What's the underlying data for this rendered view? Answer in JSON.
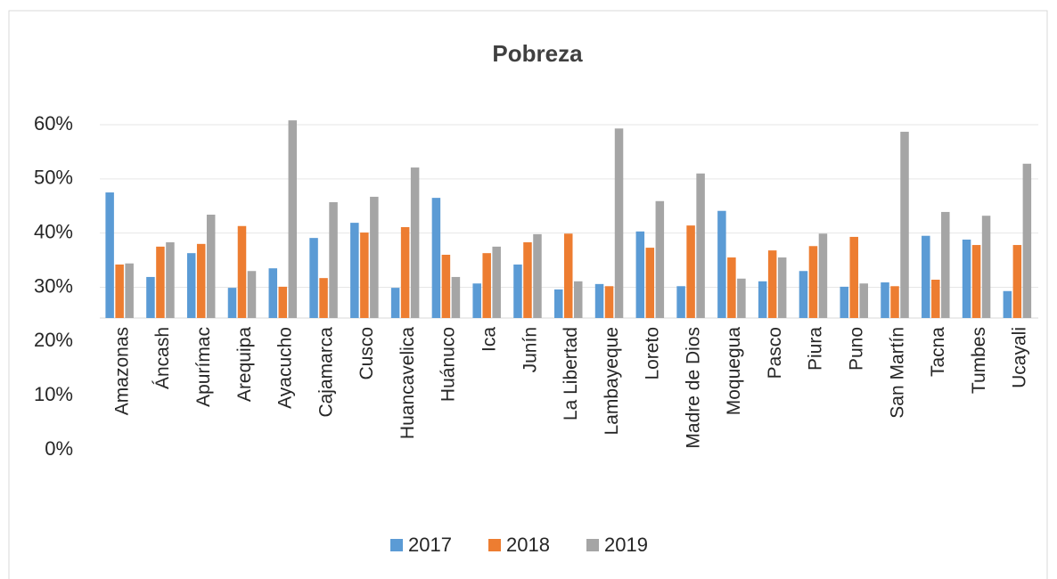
{
  "chart_data": {
    "type": "bar",
    "title": "Pobreza",
    "categories": [
      "Amazonas",
      "Áncash",
      "Apurímac",
      "Arequipa",
      "Ayacucho",
      "Cajamarca",
      "Cusco",
      "Huancavelica",
      "Huánuco",
      "Ica",
      "Junín",
      "La Libertad",
      "Lambayeque",
      "Loreto",
      "Madre de Dios",
      "Moquegua",
      "Pasco",
      "Piura",
      "Puno",
      "San Martín",
      "Tacna",
      "Tumbes",
      "Ucayali"
    ],
    "series": [
      {
        "name": "2017",
        "color": "#5b9bd5",
        "values": [
          47.5,
          31.9,
          36.3,
          29.9,
          33.5,
          39.1,
          41.9,
          29.9,
          46.5,
          30.7,
          34.2,
          29.6,
          30.6,
          40.3,
          30.2,
          44.1,
          31.1,
          33.0,
          30.1,
          30.9,
          39.5,
          38.8,
          29.3
        ]
      },
      {
        "name": "2018",
        "color": "#ed7d31",
        "values": [
          34.2,
          37.5,
          38.0,
          41.3,
          30.1,
          31.7,
          40.1,
          41.1,
          36.0,
          36.3,
          38.3,
          39.9,
          30.2,
          37.3,
          41.4,
          35.5,
          36.8,
          37.6,
          39.3,
          30.2,
          31.4,
          37.8,
          37.8
        ]
      },
      {
        "name": "2019",
        "color": "#a5a5a5",
        "values": [
          34.4,
          38.3,
          43.4,
          33.0,
          60.8,
          45.7,
          46.7,
          52.1,
          31.9,
          37.5,
          39.8,
          31.1,
          59.3,
          45.9,
          51.0,
          31.6,
          35.5,
          39.9,
          30.7,
          58.7,
          43.9,
          43.2,
          52.8
        ]
      }
    ],
    "ylim": [
      0,
      60
    ],
    "yticks": [
      {
        "value": 0,
        "label": "0%"
      },
      {
        "value": 10,
        "label": "10%"
      },
      {
        "value": 20,
        "label": "20%"
      },
      {
        "value": 30,
        "label": "30%"
      },
      {
        "value": 40,
        "label": "40%"
      },
      {
        "value": 50,
        "label": "50%"
      },
      {
        "value": 60,
        "label": "60%"
      }
    ],
    "grid": true,
    "legend": "bottom"
  }
}
